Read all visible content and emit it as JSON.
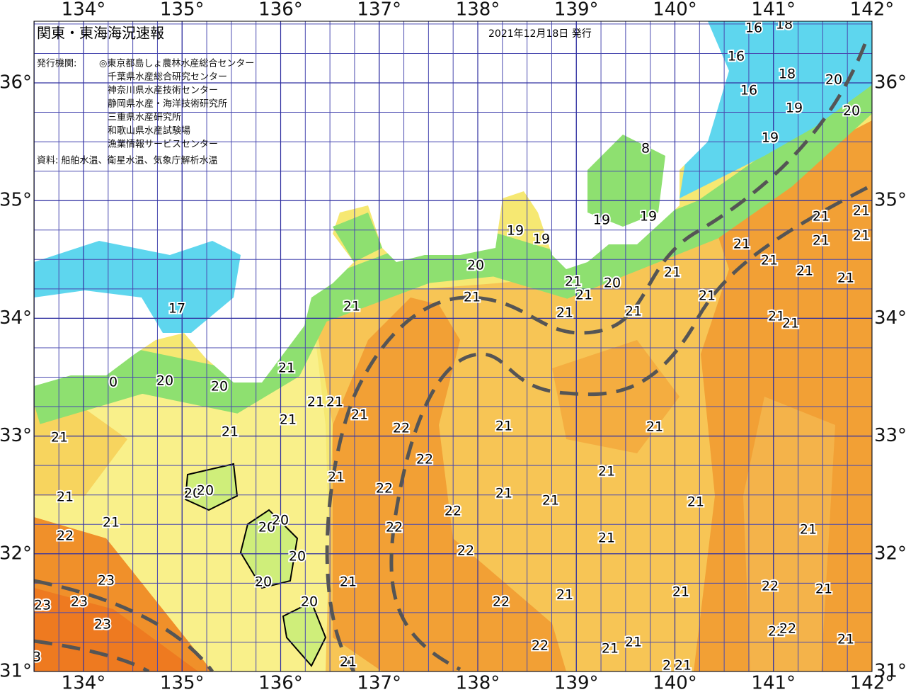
{
  "map": {
    "title": "関東・東海海況速報",
    "date": "2021年12月18日 発行",
    "publisher_label": "発行機関:",
    "publishers": [
      "◎東京都島しょ農林水産総合センター",
      "千葉県水産総合研究センター",
      "神奈川県水産技術センター",
      "静岡県水産・海洋技術研究所",
      "三重県水産研究所",
      "和歌山県水産試験場",
      "漁業情報サービスセンター"
    ],
    "source": "資料: 船舶水温、衛星水温、気象庁解析水温",
    "xticks": [
      {
        "value": 134,
        "label": "134°"
      },
      {
        "value": 135,
        "label": "135°"
      },
      {
        "value": 136,
        "label": "136°"
      },
      {
        "value": 137,
        "label": "137°"
      },
      {
        "value": 138,
        "label": "138°"
      },
      {
        "value": 139,
        "label": "139°"
      },
      {
        "value": 140,
        "label": "140°"
      },
      {
        "value": 141,
        "label": "141°"
      },
      {
        "value": 142,
        "label": "142°"
      }
    ],
    "yticks": [
      {
        "value": 31,
        "label": "31°"
      },
      {
        "value": 32,
        "label": "32°"
      },
      {
        "value": 33,
        "label": "33°"
      },
      {
        "value": 34,
        "label": "34°"
      },
      {
        "value": 35,
        "label": "35°"
      },
      {
        "value": 36,
        "label": "36°"
      }
    ],
    "contour_labels": [
      16,
      18,
      16,
      18,
      16,
      20,
      19,
      20,
      19,
      8,
      19,
      19,
      19,
      19,
      20,
      21,
      21,
      21,
      21,
      21,
      21,
      21,
      21,
      21,
      21,
      20,
      21,
      21,
      21,
      21,
      21,
      21,
      21,
      21,
      17,
      21,
      20,
      20,
      0,
      21,
      21,
      21,
      21,
      22,
      21,
      21,
      21,
      21,
      22,
      21,
      21,
      20,
      20,
      22,
      21,
      21,
      21,
      21,
      22,
      21,
      20,
      20,
      22,
      21,
      22,
      21,
      22,
      20,
      23,
      20,
      21,
      22,
      21,
      21,
      21,
      23,
      23,
      20,
      22,
      23,
      22,
      22,
      22,
      21,
      21,
      21,
      21,
      2,
      21,
      3
    ]
  }
}
